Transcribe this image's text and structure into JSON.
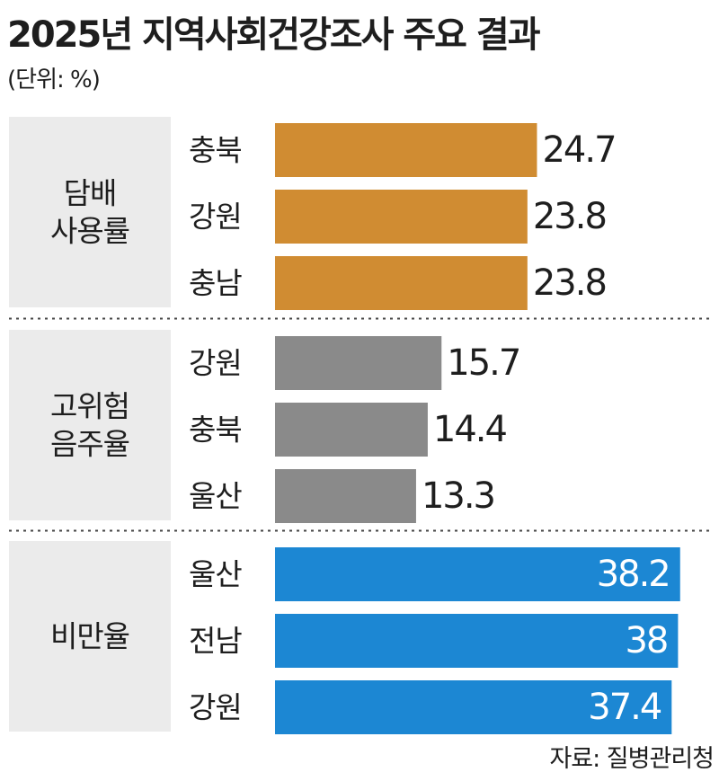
{
  "title": "2025년 지역사회건강조사 주요 결과",
  "unit": "(단위: %)",
  "source": "자료: 질병관리청",
  "colors": {
    "smoking": "#d08c32",
    "drinking": "#8a8a8a",
    "obesity": "#1c87d3",
    "panel": "#ebebeb"
  },
  "chart_data": {
    "type": "bar",
    "orientation": "horizontal",
    "grid": false,
    "groups": [
      {
        "name": "담배 사용률",
        "name_lines": [
          "담배",
          "사용률"
        ],
        "color_key": "smoking",
        "categories": [
          "충북",
          "강원",
          "충남"
        ],
        "values": [
          24.7,
          23.8,
          23.8
        ],
        "value_labels": [
          "24.7",
          "23.8",
          "23.8"
        ]
      },
      {
        "name": "고위험 음주율",
        "name_lines": [
          "고위험",
          "음주율"
        ],
        "color_key": "drinking",
        "categories": [
          "강원",
          "충북",
          "울산"
        ],
        "values": [
          15.7,
          14.4,
          13.3
        ],
        "value_labels": [
          "15.7",
          "14.4",
          "13.3"
        ]
      },
      {
        "name": "비만율",
        "name_lines": [
          "비만율"
        ],
        "color_key": "obesity",
        "categories": [
          "울산",
          "전남",
          "강원"
        ],
        "values": [
          38.2,
          38,
          37.4
        ],
        "value_labels": [
          "38.2",
          "38",
          "37.4"
        ]
      }
    ]
  }
}
